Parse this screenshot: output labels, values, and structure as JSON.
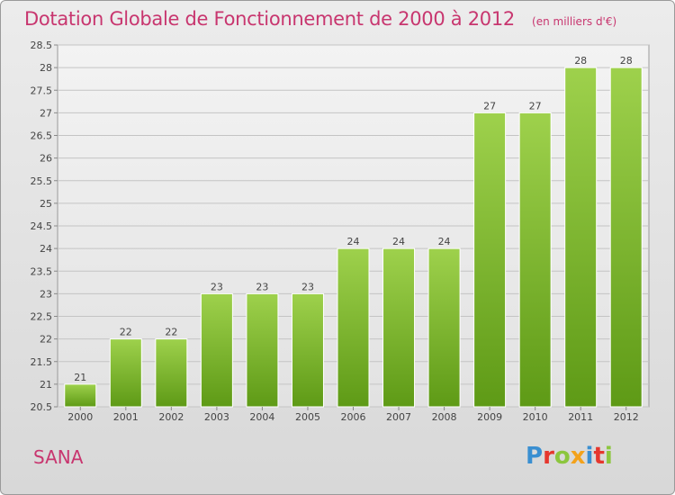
{
  "header": {
    "title": "Dotation Globale de Fonctionnement de 2000 à 2012",
    "unit": "(en milliers d'€)"
  },
  "footer": {
    "commune": "SANA",
    "logo_letters": [
      {
        "char": "P",
        "color": "#3a8fd1"
      },
      {
        "char": "r",
        "color": "#e5372e"
      },
      {
        "char": "o",
        "color": "#8cc63e"
      },
      {
        "char": "x",
        "color": "#f3a21c"
      },
      {
        "char": "i",
        "color": "#3a8fd1"
      },
      {
        "char": "t",
        "color": "#e5372e"
      },
      {
        "char": "i",
        "color": "#8cc63e"
      }
    ]
  },
  "chart_data": {
    "type": "bar",
    "categories": [
      "2000",
      "2001",
      "2002",
      "2003",
      "2004",
      "2005",
      "2006",
      "2007",
      "2008",
      "2009",
      "2010",
      "2011",
      "2012"
    ],
    "values": [
      21,
      22,
      22,
      23,
      23,
      23,
      24,
      24,
      24,
      27,
      27,
      28,
      28
    ],
    "data_labels": [
      "21",
      "22",
      "22",
      "23",
      "23",
      "23",
      "24",
      "24",
      "24",
      "27",
      "27",
      "28",
      "28"
    ],
    "y_ticks": [
      "20.5",
      "21",
      "21.5",
      "22",
      "22.5",
      "23",
      "23.5",
      "24",
      "24.5",
      "25",
      "25.5",
      "26",
      "26.5",
      "27",
      "27.5",
      "28",
      "28.5"
    ],
    "ylim": [
      20.5,
      28.5
    ],
    "grid": true,
    "bar_color_top": "#9ed14c",
    "bar_color_bottom": "#5e9a16"
  }
}
